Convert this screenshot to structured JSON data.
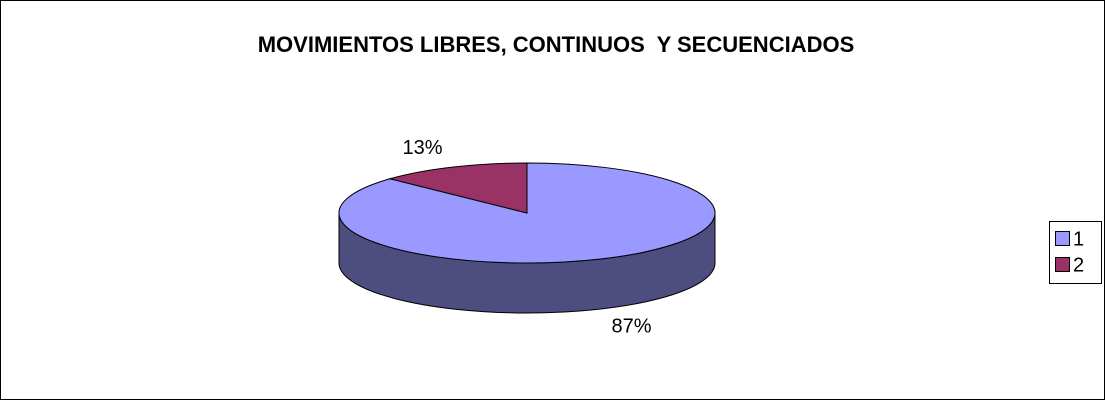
{
  "chart_data": {
    "type": "pie",
    "title": "MOVIMIENTOS LIBRES, CONTINUOS  Y SECUENCIADOS",
    "categories": [
      "1",
      "2"
    ],
    "values": [
      87,
      13
    ],
    "value_labels": [
      "87%",
      "13%"
    ],
    "colors": [
      "#9999ff",
      "#993366"
    ],
    "legend": "right"
  }
}
